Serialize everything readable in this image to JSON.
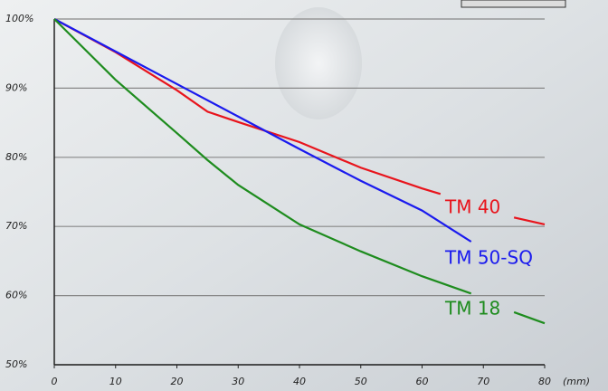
{
  "chart_data": {
    "type": "line",
    "x_label": "(mm)",
    "xlim": [
      0,
      80
    ],
    "xticks": [
      0,
      10,
      20,
      30,
      40,
      50,
      60,
      70,
      80
    ],
    "ylim": [
      50,
      100
    ],
    "yticks": [
      {
        "value": 50,
        "label": "50%"
      },
      {
        "value": 60,
        "label": "60%"
      },
      {
        "value": 70,
        "label": "70%"
      },
      {
        "value": 80,
        "label": "80%"
      },
      {
        "value": 90,
        "label": "90%"
      },
      {
        "value": 100,
        "label": "100%"
      }
    ],
    "grid": true,
    "series": [
      {
        "name": "TM 40",
        "color": "#e8141c",
        "x": [
          0,
          10,
          20,
          25,
          30,
          40,
          50,
          60,
          63,
          70,
          75,
          80
        ],
        "values": [
          100,
          95.2,
          89.7,
          86.6,
          85.1,
          82.2,
          78.5,
          75.5,
          74.7,
          null,
          71.3,
          70.3
        ]
      },
      {
        "name": "TM 50-SQ",
        "color": "#1a1aee",
        "x": [
          0,
          10,
          20,
          30,
          40,
          50,
          60,
          68
        ],
        "values": [
          100,
          95.3,
          90.6,
          85.9,
          81.2,
          76.6,
          72.3,
          67.8
        ]
      },
      {
        "name": "TM 18",
        "color": "#1e8c1e",
        "x": [
          0,
          10,
          20,
          25,
          30,
          40,
          50,
          60,
          68,
          70,
          75,
          80
        ],
        "values": [
          100,
          91.2,
          83.5,
          79.6,
          76.0,
          70.3,
          66.4,
          62.8,
          60.3,
          null,
          57.6,
          56.0
        ]
      }
    ]
  }
}
